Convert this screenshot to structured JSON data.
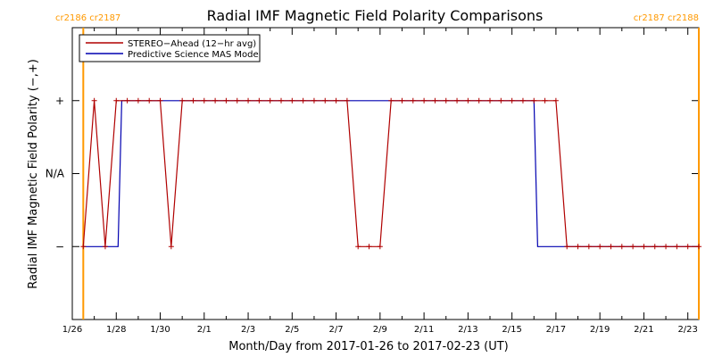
{
  "chart_data": {
    "type": "line",
    "title": "Radial IMF Magnetic Field Polarity Comparisons",
    "xlabel": "Month/Day from 2017-01-26 to 2017-02-23 (UT)",
    "ylabel": "Radial IMF Magnetic Field Polarity (−,+)",
    "x_unit": "date",
    "xlim": [
      "2017-01-26T00:00",
      "2017-02-23T12:00"
    ],
    "x_ticks": [
      {
        "date": "2017-01-26",
        "label": "1/26"
      },
      {
        "date": "2017-01-28",
        "label": "1/28"
      },
      {
        "date": "2017-01-30",
        "label": "1/30"
      },
      {
        "date": "2017-02-01",
        "label": "2/1"
      },
      {
        "date": "2017-02-03",
        "label": "2/3"
      },
      {
        "date": "2017-02-05",
        "label": "2/5"
      },
      {
        "date": "2017-02-07",
        "label": "2/7"
      },
      {
        "date": "2017-02-09",
        "label": "2/9"
      },
      {
        "date": "2017-02-11",
        "label": "2/11"
      },
      {
        "date": "2017-02-13",
        "label": "2/13"
      },
      {
        "date": "2017-02-15",
        "label": "2/15"
      },
      {
        "date": "2017-02-17",
        "label": "2/17"
      },
      {
        "date": "2017-02-19",
        "label": "2/19"
      },
      {
        "date": "2017-02-21",
        "label": "2/21"
      },
      {
        "date": "2017-02-23",
        "label": "2/23"
      }
    ],
    "ylim": [
      -2,
      2
    ],
    "y_ticks": [
      {
        "value": 1,
        "label": "+"
      },
      {
        "value": 0,
        "label": "N/A"
      },
      {
        "value": -1,
        "label": "−"
      }
    ],
    "legend_position": "top-left",
    "series": [
      {
        "name": "STEREO−Ahead (12−hr avg)",
        "color": "#b00000",
        "markers": true,
        "points": [
          [
            "2017-01-26T12:00",
            -1
          ],
          [
            "2017-01-27T00:00",
            1
          ],
          [
            "2017-01-27T12:00",
            -1
          ],
          [
            "2017-01-28T00:00",
            1
          ],
          [
            "2017-01-28T12:00",
            1
          ],
          [
            "2017-01-29T00:00",
            1
          ],
          [
            "2017-01-29T12:00",
            1
          ],
          [
            "2017-01-30T00:00",
            1
          ],
          [
            "2017-01-30T12:00",
            -1
          ],
          [
            "2017-01-31T00:00",
            1
          ],
          [
            "2017-01-31T12:00",
            1
          ],
          [
            "2017-02-01T00:00",
            1
          ],
          [
            "2017-02-01T12:00",
            1
          ],
          [
            "2017-02-02T00:00",
            1
          ],
          [
            "2017-02-02T12:00",
            1
          ],
          [
            "2017-02-03T00:00",
            1
          ],
          [
            "2017-02-03T12:00",
            1
          ],
          [
            "2017-02-04T00:00",
            1
          ],
          [
            "2017-02-04T12:00",
            1
          ],
          [
            "2017-02-05T00:00",
            1
          ],
          [
            "2017-02-05T12:00",
            1
          ],
          [
            "2017-02-06T00:00",
            1
          ],
          [
            "2017-02-06T12:00",
            1
          ],
          [
            "2017-02-07T00:00",
            1
          ],
          [
            "2017-02-07T12:00",
            1
          ],
          [
            "2017-02-08T00:00",
            -1
          ],
          [
            "2017-02-08T12:00",
            -1
          ],
          [
            "2017-02-09T00:00",
            -1
          ],
          [
            "2017-02-09T12:00",
            1
          ],
          [
            "2017-02-10T00:00",
            1
          ],
          [
            "2017-02-10T12:00",
            1
          ],
          [
            "2017-02-11T00:00",
            1
          ],
          [
            "2017-02-11T12:00",
            1
          ],
          [
            "2017-02-12T00:00",
            1
          ],
          [
            "2017-02-12T12:00",
            1
          ],
          [
            "2017-02-13T00:00",
            1
          ],
          [
            "2017-02-13T12:00",
            1
          ],
          [
            "2017-02-14T00:00",
            1
          ],
          [
            "2017-02-14T12:00",
            1
          ],
          [
            "2017-02-15T00:00",
            1
          ],
          [
            "2017-02-15T12:00",
            1
          ],
          [
            "2017-02-16T00:00",
            1
          ],
          [
            "2017-02-16T12:00",
            1
          ],
          [
            "2017-02-17T00:00",
            1
          ],
          [
            "2017-02-17T12:00",
            -1
          ],
          [
            "2017-02-18T00:00",
            -1
          ],
          [
            "2017-02-18T12:00",
            -1
          ],
          [
            "2017-02-19T00:00",
            -1
          ],
          [
            "2017-02-19T12:00",
            -1
          ],
          [
            "2017-02-20T00:00",
            -1
          ],
          [
            "2017-02-20T12:00",
            -1
          ],
          [
            "2017-02-21T00:00",
            -1
          ],
          [
            "2017-02-21T12:00",
            -1
          ],
          [
            "2017-02-22T00:00",
            -1
          ],
          [
            "2017-02-22T12:00",
            -1
          ],
          [
            "2017-02-23T00:00",
            -1
          ],
          [
            "2017-02-23T12:00",
            -1
          ]
        ]
      },
      {
        "name": "Predictive Science MAS Model",
        "color": "#0000b0",
        "markers": false,
        "points": [
          [
            "2017-01-26T12:00",
            -1
          ],
          [
            "2017-01-28T02:00",
            -1
          ],
          [
            "2017-01-28T06:00",
            1
          ],
          [
            "2017-02-16T00:00",
            1
          ],
          [
            "2017-02-16T04:00",
            -1
          ],
          [
            "2017-02-23T12:00",
            -1
          ]
        ]
      }
    ],
    "carrington_markers": [
      {
        "date": "2017-01-26T12:00",
        "label": "cr2186 cr2187",
        "color": "#ff9900"
      },
      {
        "date": "2017-02-23T12:00",
        "label": "cr2187 cr2188",
        "color": "#ff9900"
      }
    ]
  }
}
